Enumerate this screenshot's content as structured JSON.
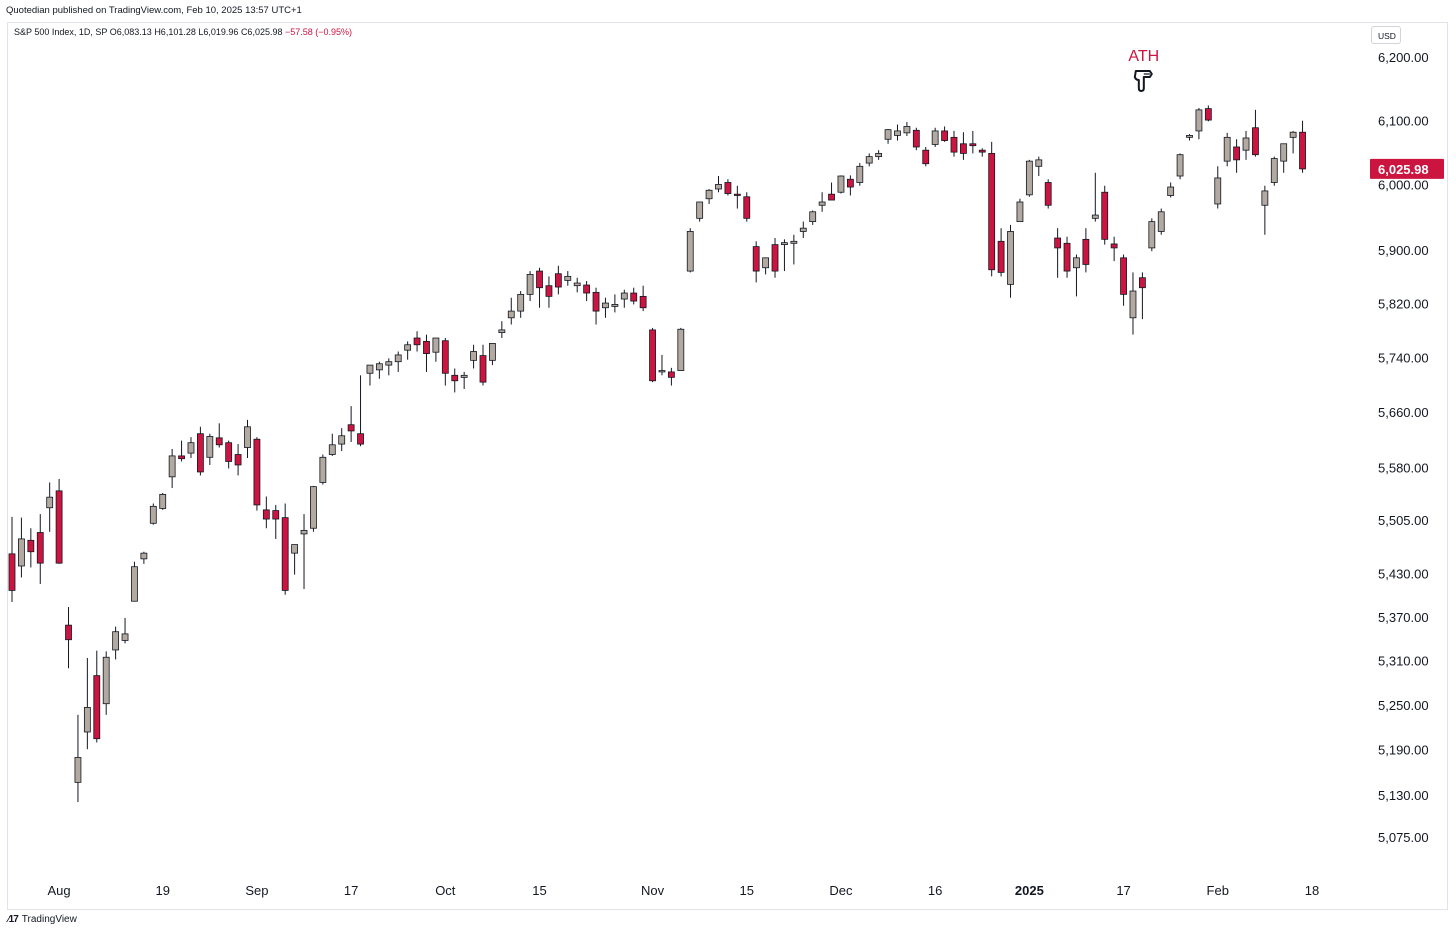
{
  "header": {
    "published": "Quotedian published on TradingView.com, Feb 10, 2025 13:57 UTC+1"
  },
  "legend": {
    "symbol": "S&P 500 Index, 1D, SP",
    "open": "O6,083.13",
    "high": "H6,101.28",
    "low": "L6,019.96",
    "close": "C6,025.98",
    "change": "−57.58 (−0.95%)"
  },
  "currency": "USD",
  "footer": {
    "brand": "TradingView"
  },
  "colors": {
    "up": "#b2aaa0",
    "down": "#cc1440",
    "wick": "#131722",
    "grid": "#f0f3fa"
  },
  "chart_data": {
    "type": "candlestick",
    "title": "S&P 500 Index, 1D, SP",
    "xlabel": "",
    "ylabel": "",
    "y_scale": "log",
    "ylim": [
      5040,
      6240
    ],
    "grid": false,
    "y_ticks": [
      "6,200.00",
      "6,100.00",
      "6,000.00",
      "5,900.00",
      "5,820.00",
      "5,740.00",
      "5,660.00",
      "5,580.00",
      "5,505.00",
      "5,430.00",
      "5,370.00",
      "5,310.00",
      "5,250.00",
      "5,190.00",
      "5,130.00",
      "5,075.00"
    ],
    "x_ticks": [
      {
        "label": "Aug",
        "i": 5,
        "bold": false
      },
      {
        "label": "19",
        "i": 16,
        "bold": false
      },
      {
        "label": "Sep",
        "i": 26,
        "bold": false
      },
      {
        "label": "17",
        "i": 36,
        "bold": false
      },
      {
        "label": "Oct",
        "i": 46,
        "bold": false
      },
      {
        "label": "15",
        "i": 56,
        "bold": false
      },
      {
        "label": "Nov",
        "i": 68,
        "bold": false
      },
      {
        "label": "15",
        "i": 78,
        "bold": false
      },
      {
        "label": "Dec",
        "i": 88,
        "bold": false
      },
      {
        "label": "16",
        "i": 98,
        "bold": false
      },
      {
        "label": "2025",
        "i": 108,
        "bold": true
      },
      {
        "label": "17",
        "i": 118,
        "bold": false
      },
      {
        "label": "Feb",
        "i": 128,
        "bold": false
      },
      {
        "label": "18",
        "i": 138,
        "bold": false
      }
    ],
    "last_price_label": "6,025.98",
    "annotation": {
      "text": "ATH",
      "i": 121,
      "value": 6200
    },
    "candles": [
      {
        "i": 0,
        "o": 5459,
        "h": 5511,
        "l": 5392,
        "c": 5408
      },
      {
        "i": 1,
        "o": 5442,
        "h": 5510,
        "l": 5426,
        "c": 5480
      },
      {
        "i": 2,
        "o": 5478,
        "h": 5495,
        "l": 5440,
        "c": 5462
      },
      {
        "i": 3,
        "o": 5489,
        "h": 5515,
        "l": 5417,
        "c": 5446
      },
      {
        "i": 4,
        "o": 5524,
        "h": 5560,
        "l": 5490,
        "c": 5539
      },
      {
        "i": 5,
        "o": 5548,
        "h": 5565,
        "l": 5445,
        "c": 5446
      },
      {
        "i": 6,
        "o": 5360,
        "h": 5385,
        "l": 5301,
        "c": 5340
      },
      {
        "i": 7,
        "o": 5148,
        "h": 5238,
        "l": 5122,
        "c": 5181
      },
      {
        "i": 8,
        "o": 5215,
        "h": 5315,
        "l": 5192,
        "c": 5248
      },
      {
        "i": 9,
        "o": 5291,
        "h": 5325,
        "l": 5201,
        "c": 5206
      },
      {
        "i": 10,
        "o": 5253,
        "h": 5324,
        "l": 5238,
        "c": 5316
      },
      {
        "i": 11,
        "o": 5326,
        "h": 5358,
        "l": 5313,
        "c": 5351
      },
      {
        "i": 12,
        "o": 5339,
        "h": 5370,
        "l": 5335,
        "c": 5348
      },
      {
        "i": 13,
        "o": 5393,
        "h": 5448,
        "l": 5393,
        "c": 5441
      },
      {
        "i": 14,
        "o": 5452,
        "h": 5462,
        "l": 5445,
        "c": 5460
      },
      {
        "i": 15,
        "o": 5502,
        "h": 5530,
        "l": 5500,
        "c": 5526
      },
      {
        "i": 16,
        "o": 5523,
        "h": 5545,
        "l": 5521,
        "c": 5543
      },
      {
        "i": 17,
        "o": 5568,
        "h": 5608,
        "l": 5552,
        "c": 5598
      },
      {
        "i": 18,
        "o": 5598,
        "h": 5620,
        "l": 5590,
        "c": 5594
      },
      {
        "i": 19,
        "o": 5602,
        "h": 5625,
        "l": 5595,
        "c": 5617
      },
      {
        "i": 20,
        "o": 5630,
        "h": 5640,
        "l": 5570,
        "c": 5575
      },
      {
        "i": 21,
        "o": 5596,
        "h": 5630,
        "l": 5585,
        "c": 5626
      },
      {
        "i": 22,
        "o": 5624,
        "h": 5645,
        "l": 5610,
        "c": 5614
      },
      {
        "i": 23,
        "o": 5617,
        "h": 5620,
        "l": 5580,
        "c": 5590
      },
      {
        "i": 24,
        "o": 5600,
        "h": 5615,
        "l": 5570,
        "c": 5585
      },
      {
        "i": 25,
        "o": 5610,
        "h": 5650,
        "l": 5595,
        "c": 5640
      },
      {
        "i": 26,
        "o": 5622,
        "h": 5625,
        "l": 5520,
        "c": 5528
      },
      {
        "i": 27,
        "o": 5521,
        "h": 5540,
        "l": 5495,
        "c": 5508
      },
      {
        "i": 28,
        "o": 5520,
        "h": 5528,
        "l": 5480,
        "c": 5508
      },
      {
        "i": 29,
        "o": 5510,
        "h": 5530,
        "l": 5402,
        "c": 5408
      },
      {
        "i": 30,
        "o": 5460,
        "h": 5470,
        "l": 5430,
        "c": 5472
      },
      {
        "i": 31,
        "o": 5487,
        "h": 5515,
        "l": 5410,
        "c": 5492
      },
      {
        "i": 32,
        "o": 5495,
        "h": 5555,
        "l": 5490,
        "c": 5554
      },
      {
        "i": 33,
        "o": 5560,
        "h": 5600,
        "l": 5557,
        "c": 5596
      },
      {
        "i": 34,
        "o": 5600,
        "h": 5630,
        "l": 5598,
        "c": 5614
      },
      {
        "i": 35,
        "o": 5615,
        "h": 5638,
        "l": 5605,
        "c": 5627
      },
      {
        "i": 36,
        "o": 5643,
        "h": 5670,
        "l": 5618,
        "c": 5634
      },
      {
        "i": 37,
        "o": 5630,
        "h": 5715,
        "l": 5612,
        "c": 5615
      },
      {
        "i": 38,
        "o": 5718,
        "h": 5730,
        "l": 5700,
        "c": 5730
      },
      {
        "i": 39,
        "o": 5723,
        "h": 5735,
        "l": 5710,
        "c": 5732
      },
      {
        "i": 40,
        "o": 5730,
        "h": 5740,
        "l": 5715,
        "c": 5735
      },
      {
        "i": 41,
        "o": 5735,
        "h": 5750,
        "l": 5720,
        "c": 5745
      },
      {
        "i": 42,
        "o": 5752,
        "h": 5765,
        "l": 5738,
        "c": 5760
      },
      {
        "i": 43,
        "o": 5770,
        "h": 5780,
        "l": 5750,
        "c": 5760
      },
      {
        "i": 44,
        "o": 5765,
        "h": 5775,
        "l": 5720,
        "c": 5747
      },
      {
        "i": 45,
        "o": 5749,
        "h": 5770,
        "l": 5735,
        "c": 5770
      },
      {
        "i": 46,
        "o": 5766,
        "h": 5770,
        "l": 5700,
        "c": 5718
      },
      {
        "i": 47,
        "o": 5715,
        "h": 5725,
        "l": 5690,
        "c": 5707
      },
      {
        "i": 48,
        "o": 5712,
        "h": 5720,
        "l": 5695,
        "c": 5715
      },
      {
        "i": 49,
        "o": 5737,
        "h": 5760,
        "l": 5725,
        "c": 5750
      },
      {
        "i": 50,
        "o": 5744,
        "h": 5760,
        "l": 5700,
        "c": 5705
      },
      {
        "i": 51,
        "o": 5737,
        "h": 5760,
        "l": 5730,
        "c": 5762
      },
      {
        "i": 52,
        "o": 5778,
        "h": 5795,
        "l": 5770,
        "c": 5782
      },
      {
        "i": 53,
        "o": 5800,
        "h": 5830,
        "l": 5790,
        "c": 5810
      },
      {
        "i": 54,
        "o": 5810,
        "h": 5840,
        "l": 5800,
        "c": 5835
      },
      {
        "i": 55,
        "o": 5835,
        "h": 5870,
        "l": 5825,
        "c": 5865
      },
      {
        "i": 56,
        "o": 5870,
        "h": 5875,
        "l": 5815,
        "c": 5845
      },
      {
        "i": 57,
        "o": 5848,
        "h": 5862,
        "l": 5815,
        "c": 5832
      },
      {
        "i": 58,
        "o": 5866,
        "h": 5878,
        "l": 5835,
        "c": 5846
      },
      {
        "i": 59,
        "o": 5856,
        "h": 5870,
        "l": 5848,
        "c": 5862
      },
      {
        "i": 60,
        "o": 5848,
        "h": 5860,
        "l": 5838,
        "c": 5852
      },
      {
        "i": 61,
        "o": 5849,
        "h": 5855,
        "l": 5825,
        "c": 5837
      },
      {
        "i": 62,
        "o": 5838,
        "h": 5845,
        "l": 5790,
        "c": 5810
      },
      {
        "i": 63,
        "o": 5815,
        "h": 5830,
        "l": 5800,
        "c": 5822
      },
      {
        "i": 64,
        "o": 5817,
        "h": 5835,
        "l": 5808,
        "c": 5820
      },
      {
        "i": 65,
        "o": 5828,
        "h": 5842,
        "l": 5815,
        "c": 5837
      },
      {
        "i": 66,
        "o": 5837,
        "h": 5845,
        "l": 5820,
        "c": 5825
      },
      {
        "i": 67,
        "o": 5832,
        "h": 5848,
        "l": 5810,
        "c": 5815
      },
      {
        "i": 68,
        "o": 5782,
        "h": 5785,
        "l": 5705,
        "c": 5707
      },
      {
        "i": 69,
        "o": 5720,
        "h": 5745,
        "l": 5715,
        "c": 5722
      },
      {
        "i": 70,
        "o": 5720,
        "h": 5726,
        "l": 5700,
        "c": 5712
      },
      {
        "i": 71,
        "o": 5722,
        "h": 5785,
        "l": 5722,
        "c": 5783
      },
      {
        "i": 72,
        "o": 5870,
        "h": 5935,
        "l": 5868,
        "c": 5930
      },
      {
        "i": 73,
        "o": 5950,
        "h": 5975,
        "l": 5945,
        "c": 5975
      },
      {
        "i": 74,
        "o": 5980,
        "h": 5995,
        "l": 5972,
        "c": 5993
      },
      {
        "i": 75,
        "o": 5995,
        "h": 6015,
        "l": 5990,
        "c": 6002
      },
      {
        "i": 76,
        "o": 6005,
        "h": 6010,
        "l": 5985,
        "c": 5988
      },
      {
        "i": 77,
        "o": 5987,
        "h": 6000,
        "l": 5965,
        "c": 5985
      },
      {
        "i": 78,
        "o": 5983,
        "h": 5990,
        "l": 5945,
        "c": 5950
      },
      {
        "i": 79,
        "o": 5907,
        "h": 5915,
        "l": 5853,
        "c": 5870
      },
      {
        "i": 80,
        "o": 5875,
        "h": 5890,
        "l": 5865,
        "c": 5890
      },
      {
        "i": 81,
        "o": 5910,
        "h": 5920,
        "l": 5860,
        "c": 5870
      },
      {
        "i": 82,
        "o": 5910,
        "h": 5918,
        "l": 5870,
        "c": 5913
      },
      {
        "i": 83,
        "o": 5912,
        "h": 5925,
        "l": 5880,
        "c": 5915
      },
      {
        "i": 84,
        "o": 5930,
        "h": 5945,
        "l": 5920,
        "c": 5935
      },
      {
        "i": 85,
        "o": 5945,
        "h": 5962,
        "l": 5940,
        "c": 5960
      },
      {
        "i": 86,
        "o": 5970,
        "h": 5990,
        "l": 5960,
        "c": 5975
      },
      {
        "i": 87,
        "o": 5987,
        "h": 6005,
        "l": 5980,
        "c": 5978
      },
      {
        "i": 88,
        "o": 5990,
        "h": 6016,
        "l": 5988,
        "c": 6015
      },
      {
        "i": 89,
        "o": 6010,
        "h": 6016,
        "l": 5985,
        "c": 5998
      },
      {
        "i": 90,
        "o": 6005,
        "h": 6035,
        "l": 6000,
        "c": 6030
      },
      {
        "i": 91,
        "o": 6035,
        "h": 6050,
        "l": 6030,
        "c": 6045
      },
      {
        "i": 92,
        "o": 6045,
        "h": 6055,
        "l": 6040,
        "c": 6050
      },
      {
        "i": 93,
        "o": 6072,
        "h": 6088,
        "l": 6065,
        "c": 6087
      },
      {
        "i": 94,
        "o": 6078,
        "h": 6095,
        "l": 6070,
        "c": 6085
      },
      {
        "i": 95,
        "o": 6082,
        "h": 6099,
        "l": 6077,
        "c": 6092
      },
      {
        "i": 96,
        "o": 6086,
        "h": 6090,
        "l": 6055,
        "c": 6060
      },
      {
        "i": 97,
        "o": 6055,
        "h": 6060,
        "l": 6030,
        "c": 6034
      },
      {
        "i": 98,
        "o": 6064,
        "h": 6090,
        "l": 6060,
        "c": 6085
      },
      {
        "i": 99,
        "o": 6085,
        "h": 6092,
        "l": 6068,
        "c": 6070
      },
      {
        "i": 100,
        "o": 6075,
        "h": 6085,
        "l": 6045,
        "c": 6052
      },
      {
        "i": 101,
        "o": 6065,
        "h": 6083,
        "l": 6040,
        "c": 6050
      },
      {
        "i": 102,
        "o": 6065,
        "h": 6085,
        "l": 6050,
        "c": 6062
      },
      {
        "i": 103,
        "o": 6055,
        "h": 6058,
        "l": 6045,
        "c": 6052
      },
      {
        "i": 104,
        "o": 6050,
        "h": 6068,
        "l": 5862,
        "c": 5872
      },
      {
        "i": 105,
        "o": 5915,
        "h": 5935,
        "l": 5862,
        "c": 5868
      },
      {
        "i": 106,
        "o": 5850,
        "h": 5940,
        "l": 5830,
        "c": 5930
      },
      {
        "i": 107,
        "o": 5945,
        "h": 5980,
        "l": 5945,
        "c": 5975
      },
      {
        "i": 108,
        "o": 5986,
        "h": 6040,
        "l": 5983,
        "c": 6038
      },
      {
        "i": 109,
        "o": 6030,
        "h": 6045,
        "l": 6015,
        "c": 6040
      },
      {
        "i": 110,
        "o": 6005,
        "h": 6010,
        "l": 5965,
        "c": 5970
      },
      {
        "i": 111,
        "o": 5920,
        "h": 5935,
        "l": 5860,
        "c": 5905
      },
      {
        "i": 112,
        "o": 5912,
        "h": 5922,
        "l": 5860,
        "c": 5870
      },
      {
        "i": 113,
        "o": 5875,
        "h": 5895,
        "l": 5832,
        "c": 5890
      },
      {
        "i": 114,
        "o": 5918,
        "h": 5935,
        "l": 5868,
        "c": 5880
      },
      {
        "i": 115,
        "o": 5950,
        "h": 6020,
        "l": 5945,
        "c": 5955
      },
      {
        "i": 116,
        "o": 5990,
        "h": 6000,
        "l": 5910,
        "c": 5918
      },
      {
        "i": 117,
        "o": 5911,
        "h": 5922,
        "l": 5885,
        "c": 5905
      },
      {
        "i": 118,
        "o": 5890,
        "h": 5895,
        "l": 5818,
        "c": 5835
      },
      {
        "i": 119,
        "o": 5800,
        "h": 5868,
        "l": 5775,
        "c": 5840
      },
      {
        "i": 120,
        "o": 5860,
        "h": 5868,
        "l": 5798,
        "c": 5845
      },
      {
        "i": 121,
        "o": 5905,
        "h": 5950,
        "l": 5900,
        "c": 5945
      },
      {
        "i": 122,
        "o": 5930,
        "h": 5965,
        "l": 5925,
        "c": 5960
      },
      {
        "i": 123,
        "o": 5985,
        "h": 6005,
        "l": 5982,
        "c": 5998
      },
      {
        "i": 124,
        "o": 6015,
        "h": 6050,
        "l": 6010,
        "c": 6048
      },
      {
        "i": 125,
        "o": 6075,
        "h": 6080,
        "l": 6070,
        "c": 6078
      },
      {
        "i": 126,
        "o": 6085,
        "h": 6121,
        "l": 6072,
        "c": 6118
      },
      {
        "i": 127,
        "o": 6120,
        "h": 6125,
        "l": 6100,
        "c": 6102
      },
      {
        "i": 128,
        "o": 5972,
        "h": 6030,
        "l": 5965,
        "c": 6012
      },
      {
        "i": 129,
        "o": 6038,
        "h": 6082,
        "l": 6030,
        "c": 6075
      },
      {
        "i": 130,
        "o": 6060,
        "h": 6072,
        "l": 6020,
        "c": 6040
      },
      {
        "i": 131,
        "o": 6055,
        "h": 6085,
        "l": 6040,
        "c": 6074
      },
      {
        "i": 132,
        "o": 6090,
        "h": 6118,
        "l": 6045,
        "c": 6048
      },
      {
        "i": 133,
        "o": 5970,
        "h": 6000,
        "l": 5925,
        "c": 5992
      },
      {
        "i": 134,
        "o": 6005,
        "h": 6045,
        "l": 6000,
        "c": 6042
      },
      {
        "i": 135,
        "o": 6038,
        "h": 6062,
        "l": 6020,
        "c": 6065
      },
      {
        "i": 136,
        "o": 6075,
        "h": 6085,
        "l": 6050,
        "c": 6083
      },
      {
        "i": 137,
        "o": 6083,
        "h": 6101,
        "l": 6020,
        "c": 6026
      }
    ]
  }
}
